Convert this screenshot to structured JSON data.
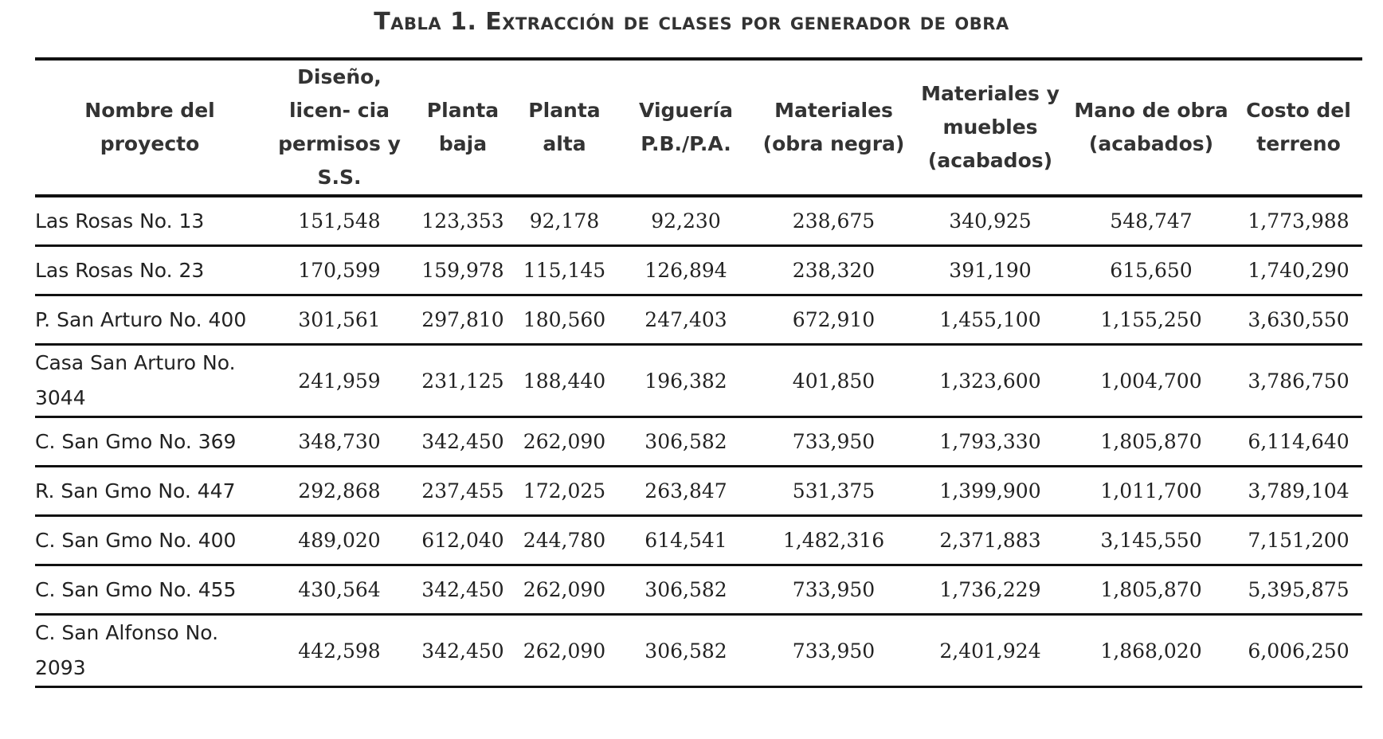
{
  "title": "Tabla 1. Extracción de clases por generador de obra",
  "table": {
    "header": [
      "Nombre del proyecto",
      "Diseño, licen- cia permisos y S.S.",
      "Planta baja",
      "Planta alta",
      "Viguería P.B./P.A.",
      "Materiales (obra negra)",
      "Materiales y muebles (acabados)",
      "Mano de obra (acabados)",
      "Costo del terreno"
    ],
    "rows": [
      [
        "Las Rosas No. 13",
        "151,548",
        "123,353",
        "92,178",
        "92,230",
        "238,675",
        "340,925",
        "548,747",
        "1,773,988"
      ],
      [
        "Las Rosas No. 23",
        "170,599",
        "159,978",
        "115,145",
        "126,894",
        "238,320",
        "391,190",
        "615,650",
        "1,740,290"
      ],
      [
        "P. San Arturo No. 400",
        "301,561",
        "297,810",
        "180,560",
        "247,403",
        "672,910",
        "1,455,100",
        "1,155,250",
        "3,630,550"
      ],
      [
        "Casa San Arturo No. 3044",
        "241,959",
        "231,125",
        "188,440",
        "196,382",
        "401,850",
        "1,323,600",
        "1,004,700",
        "3,786,750"
      ],
      [
        "C. San Gmo No. 369",
        "348,730",
        "342,450",
        "262,090",
        "306,582",
        "733,950",
        "1,793,330",
        "1,805,870",
        "6,114,640"
      ],
      [
        "R. San Gmo No. 447",
        "292,868",
        "237,455",
        "172,025",
        "263,847",
        "531,375",
        "1,399,900",
        "1,011,700",
        "3,789,104"
      ],
      [
        "C. San Gmo No. 400",
        "489,020",
        "612,040",
        "244,780",
        "614,541",
        "1,482,316",
        "2,371,883",
        "3,145,550",
        "7,151,200"
      ],
      [
        "C. San Gmo No. 455",
        "430,564",
        "342,450",
        "262,090",
        "306,582",
        "733,950",
        "1,736,229",
        "1,805,870",
        "5,395,875"
      ],
      [
        "C. San Alfonso No. 2093",
        "442,598",
        "342,450",
        "262,090",
        "306,582",
        "733,950",
        "2,401,924",
        "1,868,020",
        "6,006,250"
      ]
    ]
  }
}
